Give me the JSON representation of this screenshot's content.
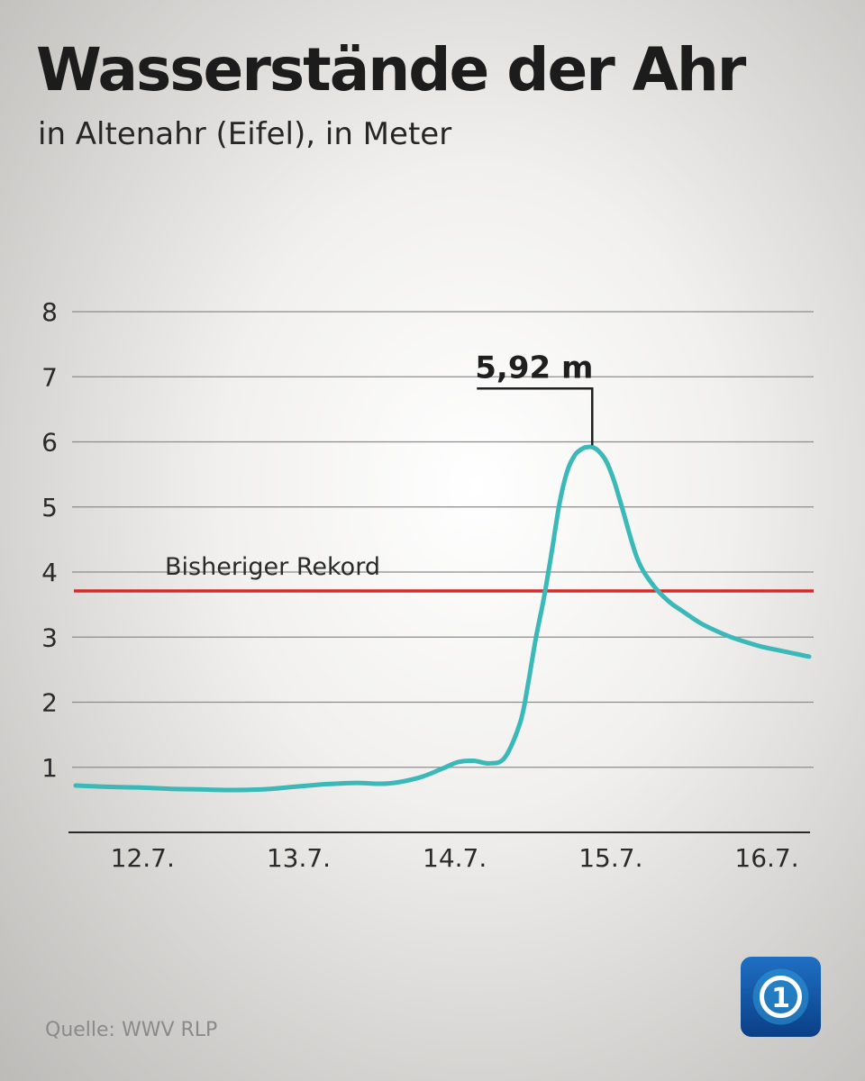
{
  "source": "Quelle: WWV RLP",
  "logo": {
    "text": "1",
    "icon": "ard-tagesschau-globe-icon",
    "colors": [
      "#0a4fa0",
      "#2f9bd9"
    ]
  },
  "colors": {
    "series": "#3bb8b8",
    "reference": "#d62b2b",
    "grid": "#8c8c8c",
    "text": "#1c1c1c"
  },
  "chart_data": {
    "type": "line",
    "title": "Wasserstände der Ahr",
    "subtitle": "in Altenahr (Eifel), in Meter",
    "ylim": [
      0,
      8
    ],
    "yticks": [
      1,
      2,
      3,
      4,
      5,
      6,
      7,
      8
    ],
    "xlim": [
      11.6,
      16.3
    ],
    "xticks": [
      {
        "x": 12,
        "label": "12.7."
      },
      {
        "x": 13,
        "label": "13.7."
      },
      {
        "x": 14,
        "label": "14.7."
      },
      {
        "x": 15,
        "label": "15.7."
      },
      {
        "x": 16,
        "label": "16.7."
      }
    ],
    "grid": true,
    "reference_line": {
      "y": 3.71,
      "label": "Bisheriger Rekord"
    },
    "annotation": {
      "x": 14.91,
      "y": 5.92,
      "label": "5,92 m"
    },
    "series": [
      {
        "x": [
          11.6,
          11.8,
          12.0,
          12.2,
          12.4,
          12.6,
          12.8,
          13.0,
          13.2,
          13.4,
          13.6,
          13.8,
          13.95,
          14.05,
          14.15,
          14.25,
          14.35,
          14.45,
          14.5,
          14.55,
          14.6,
          14.65,
          14.7,
          14.75,
          14.8,
          14.85,
          14.88,
          14.91,
          14.95,
          15.0,
          15.05,
          15.1,
          15.2,
          15.3,
          15.4,
          15.5,
          15.6,
          15.7,
          15.8,
          15.9,
          16.0,
          16.1,
          16.2,
          16.3
        ],
        "y": [
          0.72,
          0.7,
          0.69,
          0.67,
          0.66,
          0.65,
          0.66,
          0.7,
          0.74,
          0.76,
          0.75,
          0.84,
          0.98,
          1.08,
          1.1,
          1.06,
          1.15,
          1.7,
          2.3,
          3.0,
          3.6,
          4.3,
          5.05,
          5.55,
          5.8,
          5.9,
          5.92,
          5.92,
          5.86,
          5.7,
          5.4,
          5.0,
          4.2,
          3.8,
          3.55,
          3.38,
          3.22,
          3.1,
          3.0,
          2.92,
          2.85,
          2.8,
          2.75,
          2.7
        ]
      }
    ]
  }
}
